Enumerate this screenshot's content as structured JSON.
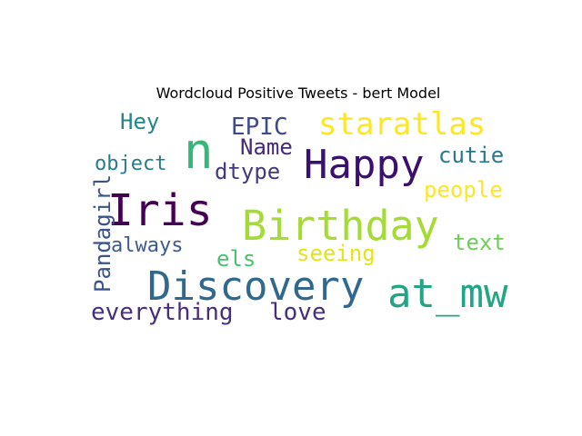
{
  "title": "Wordcloud Positive Tweets - bert Model",
  "chart_data": {
    "type": "wordcloud",
    "title": "Wordcloud Positive Tweets - bert Model",
    "words": [
      {
        "text": "n",
        "color": "#35b779",
        "weight": 1.0
      },
      {
        "text": "Iris",
        "color": "#440154",
        "weight": 0.95
      },
      {
        "text": "Birthday",
        "color": "#a5db36",
        "weight": 0.93
      },
      {
        "text": "Discovery",
        "color": "#31688e",
        "weight": 0.92
      },
      {
        "text": "Happy",
        "color": "#3b0f70",
        "weight": 0.9
      },
      {
        "text": "at_mw",
        "color": "#21a585",
        "weight": 0.88
      },
      {
        "text": "staratlas",
        "color": "#fde725",
        "weight": 0.8
      },
      {
        "text": "EPIC",
        "color": "#3e4a89",
        "weight": 0.62
      },
      {
        "text": "Name",
        "color": "#482878",
        "weight": 0.55
      },
      {
        "text": "Hey",
        "color": "#25858e",
        "weight": 0.55
      },
      {
        "text": "cutie",
        "color": "#2a788e",
        "weight": 0.55
      },
      {
        "text": "people",
        "color": "#fde725",
        "weight": 0.55
      },
      {
        "text": "dtype",
        "color": "#453781",
        "weight": 0.55
      },
      {
        "text": "Pandagirl",
        "color": "#3b528b",
        "weight": 0.55
      },
      {
        "text": "object",
        "color": "#287c8e",
        "weight": 0.5
      },
      {
        "text": "always",
        "color": "#3e5b8c",
        "weight": 0.5
      },
      {
        "text": "els",
        "color": "#4ac16d",
        "weight": 0.5
      },
      {
        "text": "seeing",
        "color": "#e5e419",
        "weight": 0.52
      },
      {
        "text": "text",
        "color": "#6ece58",
        "weight": 0.52
      },
      {
        "text": "everything",
        "color": "#472d7b",
        "weight": 0.6
      },
      {
        "text": "love",
        "color": "#472d7b",
        "weight": 0.6
      }
    ]
  }
}
